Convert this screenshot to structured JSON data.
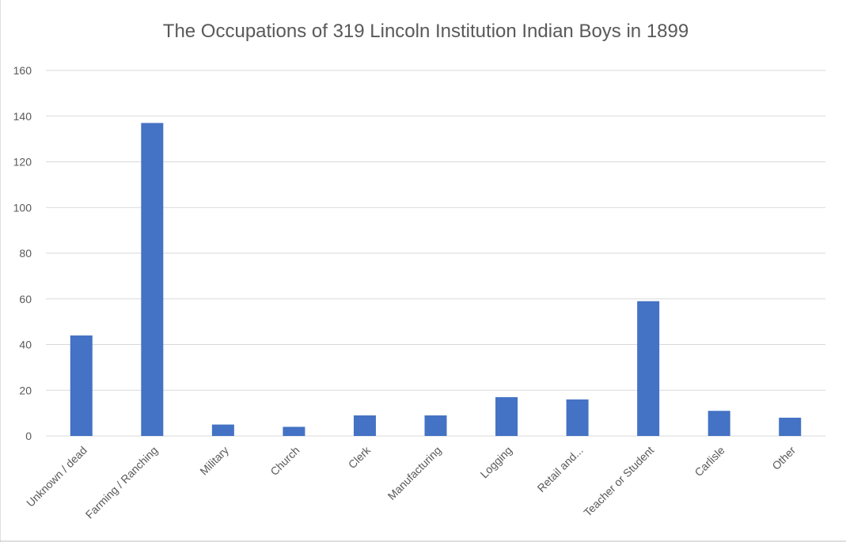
{
  "chart_data": {
    "type": "bar",
    "title": "The Occupations of 319 Lincoln Institution Indian Boys in 1899",
    "xlabel": "",
    "ylabel": "",
    "categories": [
      "Unknown / dead",
      "Farming / Ranching",
      "Military",
      "Church",
      "Clerk",
      "Manufacturing",
      "Logging",
      "Retail and...",
      "Teacher or Student",
      "Carlisle",
      "Other"
    ],
    "values": [
      44,
      137,
      5,
      4,
      9,
      9,
      17,
      16,
      59,
      11,
      8
    ],
    "ylim": [
      0,
      160
    ],
    "yticks": [
      0,
      20,
      40,
      60,
      80,
      100,
      120,
      140,
      160
    ],
    "grid": true,
    "legend": "none",
    "colors": {
      "bar": "#4472c4",
      "grid": "#d9d9d9",
      "text": "#595959"
    }
  }
}
